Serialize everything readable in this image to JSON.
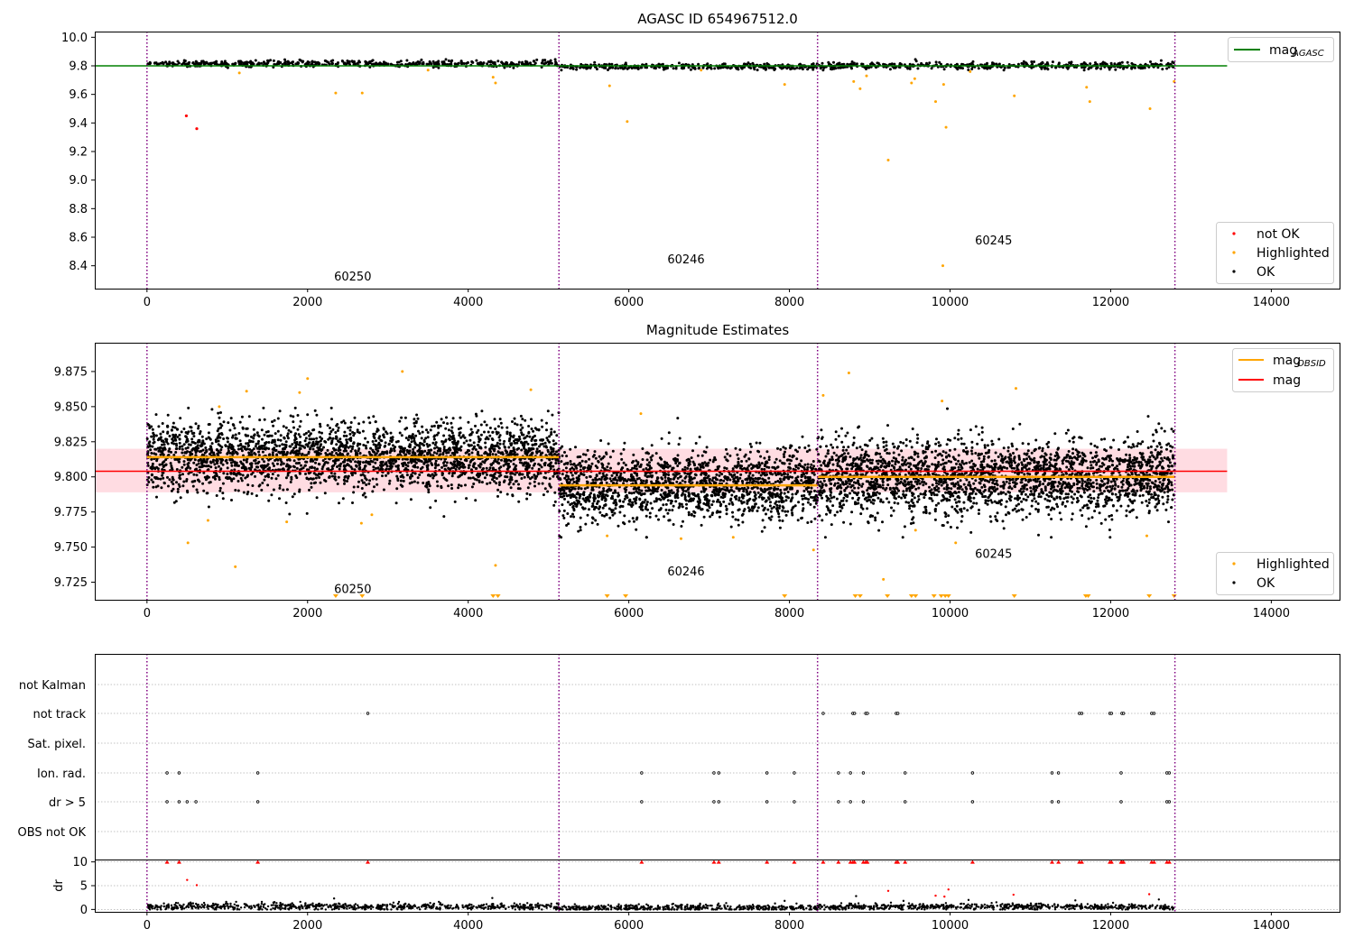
{
  "colors": {
    "ok": "#000000",
    "highlighted": "#ffa500",
    "not_ok": "#ff0000",
    "agasc_line": "#008000",
    "obsid_line": "#ffa500",
    "mag_line": "#ff0000",
    "mag_band": "#ffc0cb",
    "obs_boundary": "#800080",
    "grid": "#b0b0b0",
    "dr_axis_line": "#000000"
  },
  "chart_data": [
    {
      "id": "agasc",
      "type": "scatter",
      "title": "AGASC ID 654967512.0",
      "xlim": [
        -650,
        14850
      ],
      "ylim": [
        8.24,
        10.04
      ],
      "xticks": [
        0,
        2000,
        4000,
        6000,
        8000,
        10000,
        12000,
        14000
      ],
      "xtick_labels": [
        "0",
        "2000",
        "4000",
        "6000",
        "8000",
        "10000",
        "12000",
        "14000"
      ],
      "yticks": [
        8.4,
        8.6,
        8.8,
        9.0,
        9.2,
        9.4,
        9.6,
        9.8,
        10.0
      ],
      "ytick_labels": [
        "8.4",
        "8.6",
        "8.8",
        "9.0",
        "9.2",
        "9.4",
        "9.6",
        "9.8",
        "10.0"
      ],
      "obs_boundaries": [
        0,
        5130,
        8350,
        12800
      ],
      "obsid_labels": [
        {
          "text": "60250",
          "x": 2330,
          "y": 8.33
        },
        {
          "text": "60246",
          "x": 6480,
          "y": 8.45
        },
        {
          "text": "60245",
          "x": 10310,
          "y": 8.58
        }
      ],
      "obs_segments": [
        {
          "x0": 0,
          "x1": 5130,
          "mean": 9.815,
          "sd": 0.012,
          "n": 520
        },
        {
          "x0": 5130,
          "x1": 8350,
          "mean": 9.794,
          "sd": 0.011,
          "n": 330
        },
        {
          "x0": 8350,
          "x1": 12800,
          "mean": 9.8,
          "sd": 0.012,
          "n": 450
        }
      ],
      "lines": [
        {
          "name": "mag_AGASC",
          "y": 9.8,
          "x": [
            -650,
            13450
          ]
        }
      ],
      "not_ok_points": [
        {
          "x": 490,
          "y": 9.45
        },
        {
          "x": 620,
          "y": 9.36
        }
      ],
      "highlighted_points": [
        {
          "x": 2350,
          "y": 9.61
        },
        {
          "x": 2680,
          "y": 9.61
        },
        {
          "x": 4340,
          "y": 9.68
        },
        {
          "x": 4310,
          "y": 9.72
        },
        {
          "x": 5760,
          "y": 9.66
        },
        {
          "x": 5980,
          "y": 9.41
        },
        {
          "x": 7940,
          "y": 9.67
        },
        {
          "x": 8800,
          "y": 9.69
        },
        {
          "x": 8880,
          "y": 9.64
        },
        {
          "x": 8960,
          "y": 9.73
        },
        {
          "x": 9230,
          "y": 9.14
        },
        {
          "x": 9520,
          "y": 9.68
        },
        {
          "x": 9560,
          "y": 9.71
        },
        {
          "x": 9820,
          "y": 9.55
        },
        {
          "x": 9920,
          "y": 9.67
        },
        {
          "x": 9950,
          "y": 9.37
        },
        {
          "x": 9910,
          "y": 8.4
        },
        {
          "x": 10800,
          "y": 9.59
        },
        {
          "x": 11700,
          "y": 9.65
        },
        {
          "x": 11740,
          "y": 9.55
        },
        {
          "x": 12490,
          "y": 9.5
        },
        {
          "x": 12790,
          "y": 9.69
        },
        {
          "x": 1150,
          "y": 9.75
        },
        {
          "x": 3500,
          "y": 9.77
        },
        {
          "x": 6900,
          "y": 9.77
        },
        {
          "x": 10250,
          "y": 9.76
        }
      ],
      "legend": {
        "position": "lower right",
        "entries": [
          {
            "label": "not OK",
            "color": "#ff0000"
          },
          {
            "label": "Highlighted",
            "color": "#ffa500"
          },
          {
            "label": "OK",
            "color": "#000000"
          }
        ]
      },
      "legend2": {
        "position": "upper right",
        "entries": [
          {
            "label": "mag",
            "sub": "AGASC",
            "color": "#008000"
          }
        ]
      }
    },
    {
      "id": "estimates",
      "type": "scatter",
      "title": "Magnitude Estimates",
      "xlim": [
        -650,
        14850
      ],
      "ylim": [
        9.7125,
        9.8955
      ],
      "xticks": [
        0,
        2000,
        4000,
        6000,
        8000,
        10000,
        12000,
        14000
      ],
      "xtick_labels": [
        "0",
        "2000",
        "4000",
        "6000",
        "8000",
        "10000",
        "12000",
        "14000"
      ],
      "yticks": [
        9.725,
        9.75,
        9.775,
        9.8,
        9.825,
        9.85,
        9.875
      ],
      "ytick_labels": [
        "9.725",
        "9.750",
        "9.775",
        "9.800",
        "9.825",
        "9.850",
        "9.875"
      ],
      "obs_boundaries": [
        0,
        5130,
        8350,
        12800
      ],
      "obsid_labels": [
        {
          "text": "60250",
          "x": 2330,
          "y": 9.7205
        },
        {
          "text": "60246",
          "x": 6480,
          "y": 9.733
        },
        {
          "text": "60245",
          "x": 10310,
          "y": 9.7455
        }
      ],
      "obs_segments": [
        {
          "x0": 0,
          "x1": 5130,
          "mean": 9.814,
          "sd": 0.0125,
          "n": 2600
        },
        {
          "x0": 5130,
          "x1": 8350,
          "mean": 9.794,
          "sd": 0.0125,
          "n": 1700
        },
        {
          "x0": 8350,
          "x1": 12800,
          "mean": 9.8,
          "sd": 0.0135,
          "n": 2400
        }
      ],
      "mag": 9.804,
      "mag_band": [
        9.789,
        9.82
      ],
      "mag_x": [
        -650,
        13450
      ],
      "mag_obsid": [
        {
          "x0": 0,
          "x1": 5130,
          "y": 9.814
        },
        {
          "x0": 5130,
          "x1": 8350,
          "y": 9.794
        },
        {
          "x0": 8350,
          "x1": 12800,
          "y": 9.8
        }
      ],
      "highlighted_points": [
        {
          "x": 1100,
          "y": 9.736
        },
        {
          "x": 510,
          "y": 9.753
        },
        {
          "x": 4340,
          "y": 9.737
        },
        {
          "x": 3180,
          "y": 9.875
        },
        {
          "x": 2000,
          "y": 9.87
        },
        {
          "x": 1240,
          "y": 9.861
        },
        {
          "x": 8740,
          "y": 9.874
        },
        {
          "x": 10820,
          "y": 9.863
        },
        {
          "x": 9170,
          "y": 9.727
        },
        {
          "x": 10070,
          "y": 9.753
        },
        {
          "x": 9900,
          "y": 9.854
        },
        {
          "x": 8420,
          "y": 9.858
        },
        {
          "x": 6150,
          "y": 9.845
        },
        {
          "x": 7300,
          "y": 9.757
        },
        {
          "x": 8300,
          "y": 9.748
        },
        {
          "x": 760,
          "y": 9.769
        },
        {
          "x": 1740,
          "y": 9.768
        },
        {
          "x": 2670,
          "y": 9.767
        },
        {
          "x": 4780,
          "y": 9.862
        },
        {
          "x": 2800,
          "y": 9.773
        },
        {
          "x": 5730,
          "y": 9.758
        },
        {
          "x": 6650,
          "y": 9.756
        },
        {
          "x": 12450,
          "y": 9.758
        },
        {
          "x": 9570,
          "y": 9.762
        },
        {
          "x": 900,
          "y": 9.85
        },
        {
          "x": 1900,
          "y": 9.86
        }
      ],
      "clipped_low_x": [
        2350,
        2680,
        4310,
        4370,
        5730,
        5960,
        7940,
        8820,
        8880,
        9220,
        9520,
        9570,
        9800,
        9890,
        9940,
        9980,
        10800,
        11690,
        11720,
        12480,
        12790
      ],
      "legend": {
        "position": "lower right",
        "entries": [
          {
            "label": "Highlighted",
            "color": "#ffa500"
          },
          {
            "label": "OK",
            "color": "#000000"
          }
        ]
      },
      "legend2": {
        "position": "upper right",
        "entries": [
          {
            "label": "mag",
            "sub": "OBSID",
            "color": "#ffa500"
          },
          {
            "label": "mag",
            "sub": "",
            "color": "#ff0000"
          }
        ]
      }
    },
    {
      "id": "flags",
      "type": "scatter",
      "xlim": [
        -650,
        14850
      ],
      "obs_boundaries": [
        0,
        5130,
        8350,
        12800
      ],
      "categories": [
        "OBS not OK",
        "dr > 5",
        "Ion. rad.",
        "Sat. pixel.",
        "not track",
        "not Kalman"
      ],
      "flags": {
        "not track": [
          2750,
          8420,
          8790,
          8810,
          8950,
          8970,
          9330,
          9350,
          11610,
          11640,
          11990,
          12010,
          12140,
          12160,
          12510,
          12540
        ],
        "Ion. rad.": [
          250,
          400,
          1380,
          6160,
          7060,
          7120,
          7720,
          8060,
          8610,
          8760,
          8920,
          9440,
          10280,
          11270,
          11350,
          12130,
          12700,
          12730
        ],
        "dr > 5": [
          250,
          400,
          500,
          610,
          1380,
          6160,
          7060,
          7120,
          7720,
          8060,
          8610,
          8760,
          8920,
          9440,
          10280,
          11270,
          11350,
          12130,
          12700,
          12730
        ]
      }
    },
    {
      "id": "dr",
      "type": "scatter",
      "ylabel": "dr",
      "xlim": [
        -650,
        14850
      ],
      "ylim": [
        -0.5,
        10.5
      ],
      "xticks": [
        0,
        2000,
        4000,
        6000,
        8000,
        10000,
        12000,
        14000
      ],
      "xtick_labels": [
        "0",
        "2000",
        "4000",
        "6000",
        "8000",
        "10000",
        "12000",
        "14000"
      ],
      "yticks": [
        0,
        5,
        10
      ],
      "ytick_labels": [
        "0",
        "5",
        "10"
      ],
      "obs_boundaries": [
        0,
        5130,
        8350,
        12800
      ],
      "high_dr_markers_x": [
        250,
        400,
        1380,
        2750,
        6160,
        7060,
        7120,
        7720,
        8060,
        8420,
        8610,
        8760,
        8790,
        8810,
        8920,
        8950,
        8970,
        9330,
        9350,
        9440,
        10280,
        11270,
        11350,
        11610,
        11640,
        11990,
        12010,
        12130,
        12140,
        12160,
        12510,
        12540,
        12700,
        12730
      ],
      "scattered_red": [
        {
          "x": 500,
          "y": 6.2
        },
        {
          "x": 620,
          "y": 5.1
        },
        {
          "x": 9230,
          "y": 3.9
        },
        {
          "x": 9980,
          "y": 4.2
        },
        {
          "x": 10790,
          "y": 3.1
        },
        {
          "x": 12480,
          "y": 3.2
        },
        {
          "x": 9820,
          "y": 2.9
        },
        {
          "x": 9930,
          "y": 2.7
        }
      ],
      "scattered_black": [
        {
          "x": 2330,
          "y": 2.3
        },
        {
          "x": 4300,
          "y": 2.4
        },
        {
          "x": 8830,
          "y": 2.8
        },
        {
          "x": 9420,
          "y": 1.8
        },
        {
          "x": 10230,
          "y": 2.0
        },
        {
          "x": 11560,
          "y": 1.9
        },
        {
          "x": 7940,
          "y": 1.8
        },
        {
          "x": 12600,
          "y": 2.1
        },
        {
          "x": 1430,
          "y": 1.6
        }
      ]
    }
  ]
}
